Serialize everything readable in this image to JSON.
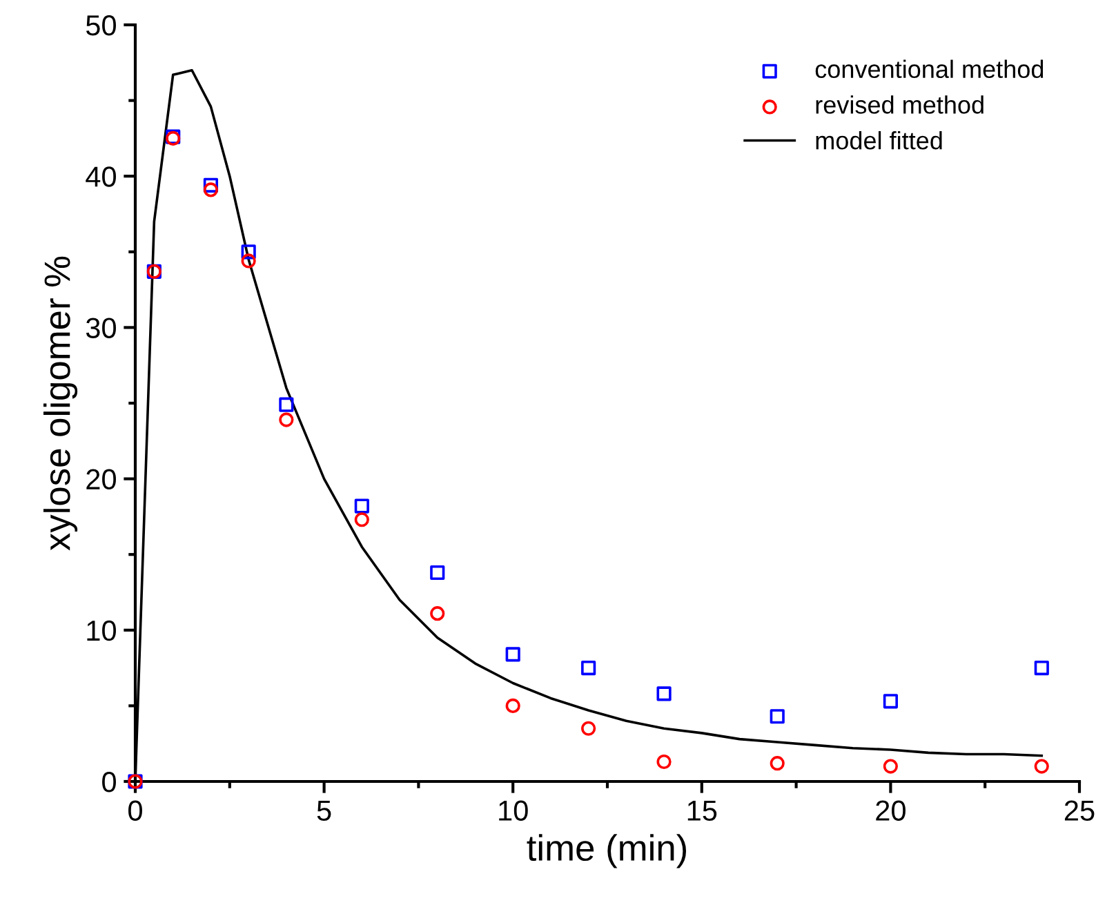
{
  "chart_data": {
    "type": "scatter",
    "xlabel": "time (min)",
    "ylabel": "xylose oligomer %",
    "xlim": [
      0,
      25
    ],
    "ylim": [
      0,
      50
    ],
    "xticks": [
      0,
      5,
      10,
      15,
      20,
      25
    ],
    "yticks": [
      0,
      10,
      20,
      30,
      40,
      50
    ],
    "grid": false,
    "legend": "top right",
    "series": [
      {
        "name": "conventional method",
        "marker": "square",
        "color": "#0000ff",
        "x": [
          0,
          0.5,
          1,
          2,
          3,
          4,
          6,
          8,
          10,
          12,
          14,
          17,
          20,
          24
        ],
        "values": [
          0,
          33.7,
          42.6,
          39.4,
          35,
          24.9,
          18.2,
          13.8,
          8.4,
          7.5,
          5.8,
          4.3,
          5.3,
          7.5
        ]
      },
      {
        "name": "revised method",
        "marker": "circle",
        "color": "#ff0000",
        "x": [
          0,
          0.5,
          1,
          2,
          3,
          4,
          6,
          8,
          10,
          12,
          14,
          17,
          20,
          24
        ],
        "values": [
          0,
          33.7,
          42.5,
          39.1,
          34.4,
          23.9,
          17.3,
          11.1,
          5.0,
          3.5,
          1.3,
          1.2,
          1.0,
          1.0
        ]
      },
      {
        "name": "model fitted",
        "type": "line",
        "line_style": "solid",
        "color": "#000000",
        "x": [
          0,
          0.5,
          1,
          1.5,
          2,
          2.5,
          3,
          4,
          5,
          6,
          7,
          8,
          9,
          10,
          11,
          12,
          13,
          14,
          15,
          16,
          17,
          18,
          19,
          20,
          21,
          22,
          23,
          24
        ],
        "values": [
          0,
          37,
          46.7,
          47,
          44.6,
          40,
          34.5,
          26,
          20,
          15.5,
          12,
          9.5,
          7.8,
          6.5,
          5.5,
          4.7,
          4.0,
          3.5,
          3.2,
          2.8,
          2.6,
          2.4,
          2.2,
          2.1,
          1.9,
          1.8,
          1.8,
          1.7
        ]
      }
    ]
  }
}
